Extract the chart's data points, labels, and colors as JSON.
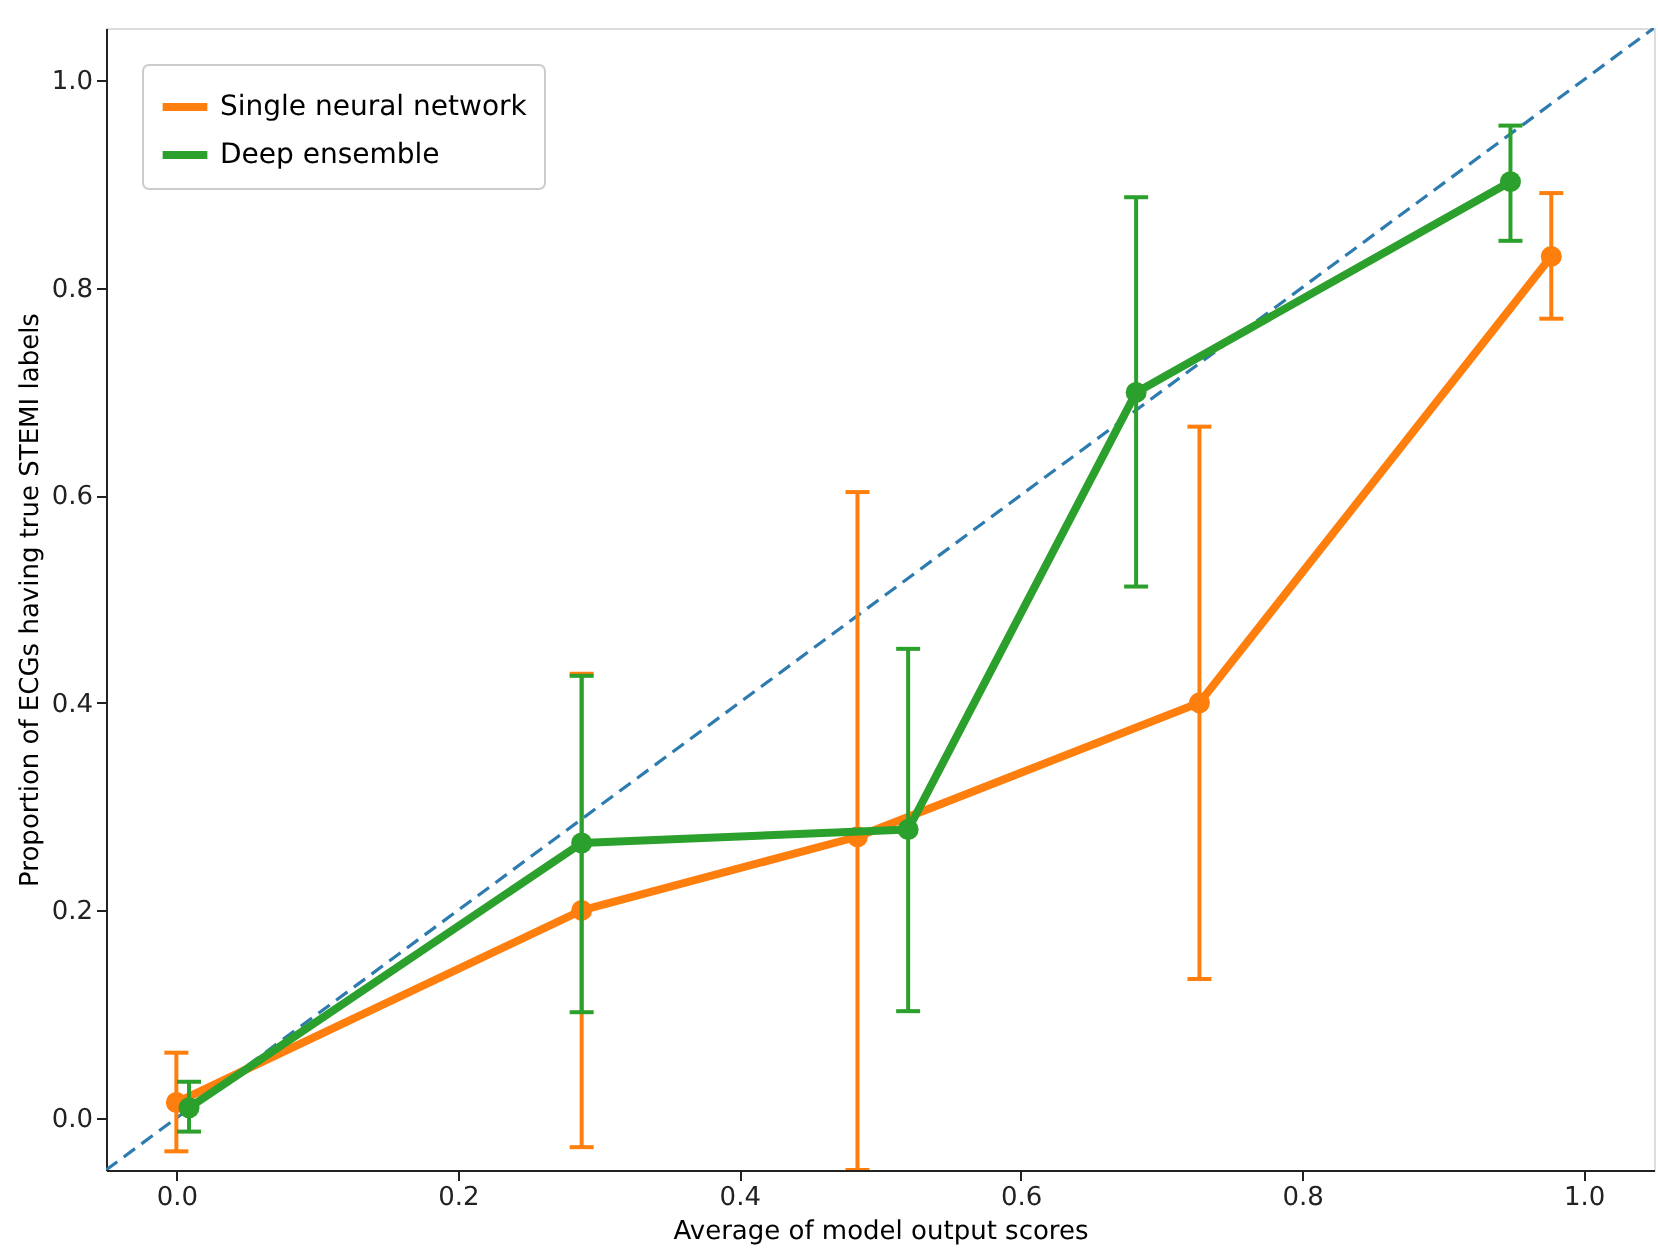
{
  "chart_data": {
    "type": "line",
    "xlabel": "Average of model output scores",
    "ylabel": "Proportion of ECGs having true STEMI labels",
    "xlim": [
      -0.05,
      1.05
    ],
    "ylim": [
      -0.05,
      1.05
    ],
    "xticks": [
      {
        "value": 0,
        "label": "0.0"
      },
      0.2,
      0.4,
      0.6,
      0.8,
      {
        "value": 1,
        "label": "1.0"
      }
    ],
    "yticks": [
      {
        "value": 0,
        "label": "0.0"
      },
      0.2,
      0.4,
      0.6,
      0.8,
      {
        "value": 1,
        "label": "1.0"
      }
    ],
    "grid": false,
    "legend": "top left",
    "marker": "circle",
    "series": [
      {
        "type": "line",
        "color": "#2e7bb0",
        "line_style": "dashed",
        "marker": "none",
        "x": [
          -0.05,
          1.05
        ],
        "values": [
          -0.05,
          1.05
        ]
      },
      {
        "name": "Single neural network",
        "color": "#ff7f0e",
        "line_style": "solid",
        "x": [
          0.0,
          0.288,
          0.484,
          0.727,
          0.977
        ],
        "values": [
          0.015,
          0.2,
          0.271,
          0.4,
          0.83
        ],
        "errors": [
          [
            -0.032,
            0.063
          ],
          [
            -0.028,
            0.428
          ],
          [
            -0.05,
            0.603
          ],
          [
            0.134,
            0.666
          ],
          [
            0.77,
            0.891
          ]
        ]
      },
      {
        "name": "Deep ensemble",
        "color": "#2ca02c",
        "line_style": "solid",
        "x": [
          0.009,
          0.288,
          0.52,
          0.682,
          0.948
        ],
        "values": [
          0.01,
          0.265,
          0.278,
          0.699,
          0.902
        ],
        "errors": [
          [
            -0.013,
            0.035
          ],
          [
            0.102,
            0.426
          ],
          [
            0.103,
            0.452
          ],
          [
            0.512,
            0.887
          ],
          [
            0.845,
            0.956
          ]
        ]
      }
    ]
  }
}
